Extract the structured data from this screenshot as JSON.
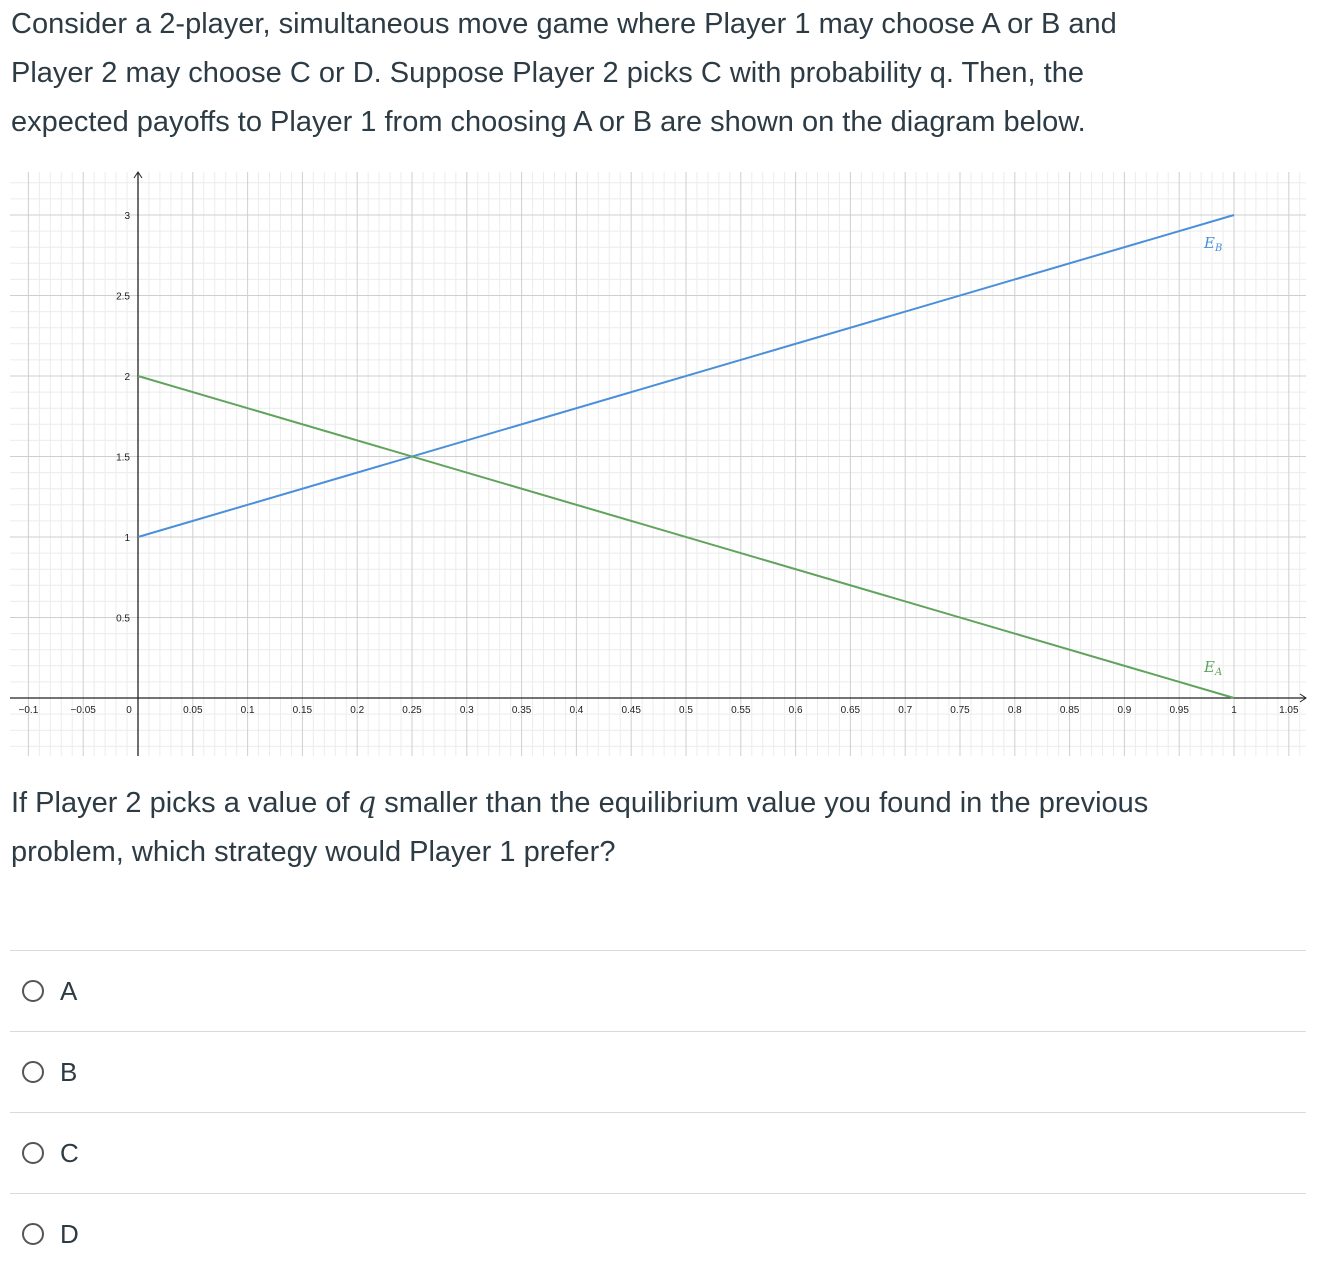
{
  "question": {
    "lines": [
      "Consider a 2-player, simultaneous move game where Player 1 may choose A or B and",
      "Player 2 may choose C or D.  Suppose Player 2 picks C with probability q.  Then, the",
      "expected payoffs to Player 1 from choosing A or B are shown on the diagram below."
    ]
  },
  "chart_data": {
    "type": "line",
    "x_ticks": [
      "-0.1",
      "-0.05",
      "0",
      "0.05",
      "0.1",
      "0.15",
      "0.2",
      "0.25",
      "0.3",
      "0.35",
      "0.4",
      "0.45",
      "0.5",
      "0.55",
      "0.6",
      "0.65",
      "0.7",
      "0.75",
      "0.8",
      "0.85",
      "0.9",
      "0.95",
      "1",
      "1.05"
    ],
    "y_ticks": [
      "0.5",
      "1",
      "1.5",
      "2",
      "2.5",
      "3"
    ],
    "xlim": [
      -0.1,
      1.07
    ],
    "ylim": [
      -0.35,
      3.25
    ],
    "grid": true,
    "series": [
      {
        "name": "E_B",
        "label_main": "E",
        "label_sub": "B",
        "color": "#4a8fd9",
        "x": [
          0,
          1
        ],
        "y": [
          1,
          3
        ]
      },
      {
        "name": "E_A",
        "label_main": "E",
        "label_sub": "A",
        "color": "#5fa35c",
        "x": [
          0,
          1
        ],
        "y": [
          2,
          0
        ]
      }
    ]
  },
  "followup": {
    "before": "If Player 2 picks a value of ",
    "var": "q",
    "after": " smaller than the equilibrium value you found in the previous",
    "line2": "problem, which strategy would Player 1 prefer?"
  },
  "answers": [
    {
      "label": "A"
    },
    {
      "label": "B"
    },
    {
      "label": "C"
    },
    {
      "label": "D"
    }
  ]
}
